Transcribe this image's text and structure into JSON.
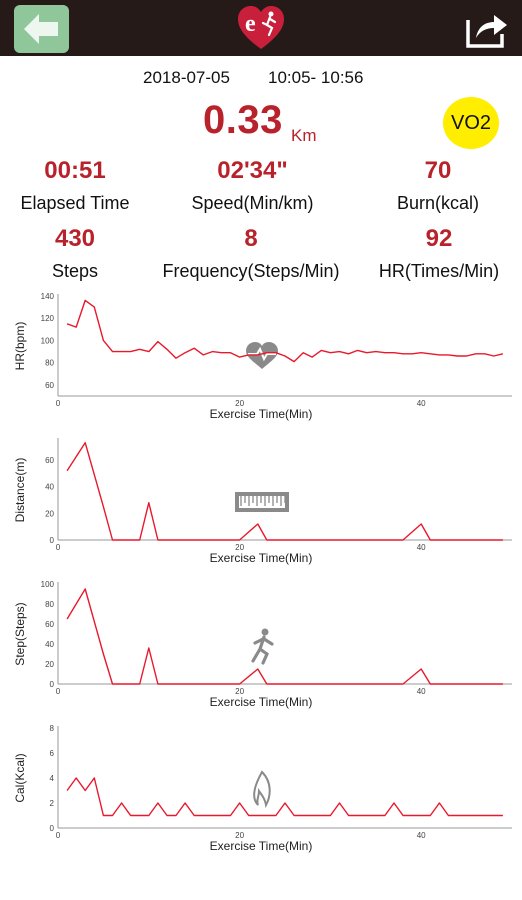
{
  "header": {
    "back_icon": "back-arrow-icon",
    "logo_icon": "heart-runner-logo-icon",
    "logo_letter": "e",
    "share_icon": "share-icon"
  },
  "session": {
    "date": "2018-07-05",
    "time_range": "10:05- 10:56",
    "distance_value": "0.33",
    "distance_unit": "Km",
    "vo2_label": "VO2"
  },
  "stats": [
    {
      "value": "00:51",
      "label": "Elapsed Time"
    },
    {
      "value": "02'34\"",
      "label": "Speed(Min/km)"
    },
    {
      "value": "70",
      "label": "Burn(kcal)"
    },
    {
      "value": "430",
      "label": "Steps"
    },
    {
      "value": "8",
      "label": "Frequency(Steps/Min)"
    },
    {
      "value": "92",
      "label": "HR(Times/Min)"
    }
  ],
  "colors": {
    "accent_red": "#b8232b",
    "line_red": "#e8192c",
    "topbar": "#251a18",
    "back_button": "#8fc79a",
    "vo2_badge": "#ffee00"
  },
  "chart_data": [
    {
      "type": "line",
      "ylabel": "HR(bpm)",
      "xlabel": "Exercise Time(Min)",
      "icon": "heart-rate-icon",
      "yticks": [
        60,
        80,
        100,
        120,
        140
      ],
      "ylim": [
        50,
        140
      ],
      "xticks": [
        0,
        20,
        40
      ],
      "xlim": [
        0,
        50
      ],
      "series": [
        {
          "x": [
            1,
            2,
            3,
            4,
            5,
            6,
            7,
            8,
            9,
            10,
            11,
            12,
            13,
            14,
            15,
            16,
            17,
            18,
            19,
            20,
            21,
            22,
            23,
            24,
            25,
            26,
            27,
            28,
            29,
            30,
            31,
            32,
            33,
            34,
            35,
            36,
            37,
            38,
            39,
            40,
            41,
            42,
            43,
            44,
            45,
            46,
            47,
            48,
            49
          ],
          "y": [
            115,
            112,
            136,
            130,
            100,
            90,
            90,
            90,
            92,
            90,
            99,
            92,
            84,
            89,
            93,
            87,
            90,
            89,
            89,
            85,
            87,
            87,
            89,
            89,
            86,
            81,
            89,
            85,
            91,
            89,
            90,
            88,
            91,
            89,
            90,
            89,
            89,
            88,
            88,
            89,
            88,
            87,
            87,
            86,
            86,
            88,
            88,
            86,
            88
          ]
        }
      ]
    },
    {
      "type": "line",
      "ylabel": "Distance(m)",
      "xlabel": "Exercise Time(Min)",
      "icon": "ruler-icon",
      "yticks": [
        0,
        20,
        40,
        60
      ],
      "ylim": [
        0,
        75
      ],
      "xticks": [
        0,
        20,
        40
      ],
      "xlim": [
        0,
        50
      ],
      "series": [
        {
          "x": [
            1,
            3,
            5,
            6,
            9,
            10,
            11,
            20,
            22,
            23,
            38,
            40,
            41,
            49
          ],
          "y": [
            52,
            73,
            25,
            0,
            0,
            28,
            0,
            0,
            12,
            0,
            0,
            12,
            0,
            0
          ]
        }
      ]
    },
    {
      "type": "line",
      "ylabel": "Step(Steps)",
      "xlabel": "Exercise Time(Min)",
      "icon": "runner-icon",
      "yticks": [
        0,
        20,
        40,
        60,
        80,
        100
      ],
      "ylim": [
        0,
        100
      ],
      "xticks": [
        0,
        20,
        40
      ],
      "xlim": [
        0,
        50
      ],
      "series": [
        {
          "x": [
            1,
            3,
            5,
            6,
            9,
            10,
            11,
            20,
            22,
            23,
            38,
            40,
            41,
            49
          ],
          "y": [
            65,
            95,
            30,
            0,
            0,
            36,
            0,
            0,
            15,
            0,
            0,
            15,
            0,
            0
          ]
        }
      ]
    },
    {
      "type": "line",
      "ylabel": "Cal(Kcal)",
      "xlabel": "Exercise Time(Min)",
      "icon": "flame-icon",
      "yticks": [
        0,
        2,
        4,
        6,
        8
      ],
      "ylim": [
        0,
        8
      ],
      "xticks": [
        0,
        20,
        40
      ],
      "xlim": [
        0,
        50
      ],
      "series": [
        {
          "x": [
            1,
            2,
            3,
            4,
            5,
            6,
            7,
            8,
            9,
            10,
            11,
            12,
            13,
            14,
            15,
            19,
            20,
            21,
            24,
            25,
            26,
            30,
            31,
            32,
            36,
            37,
            38,
            41,
            42,
            43,
            49
          ],
          "y": [
            3,
            4,
            3,
            4,
            1,
            1,
            2,
            1,
            1,
            1,
            2,
            1,
            1,
            2,
            1,
            1,
            2,
            1,
            1,
            2,
            1,
            1,
            2,
            1,
            1,
            2,
            1,
            1,
            2,
            1,
            1
          ]
        }
      ]
    }
  ]
}
